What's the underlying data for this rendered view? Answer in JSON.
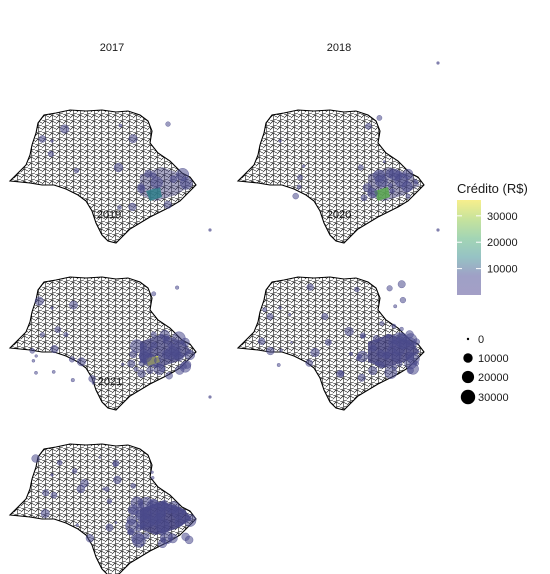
{
  "chart_data": {
    "type": "map",
    "panels": [
      {
        "year": "2017"
      },
      {
        "year": "2018"
      },
      {
        "year": "2019"
      },
      {
        "year": "2020"
      },
      {
        "year": "2021"
      }
    ],
    "fill_legend": {
      "title": "Crédito (R$)",
      "breaks": [
        {
          "label": "30000",
          "value": 30000,
          "color": "#f3ea8b"
        },
        {
          "label": "20000",
          "value": 20000,
          "color": "#b6df9e"
        },
        {
          "label": "10000",
          "value": 10000,
          "color": "#93c4c3"
        }
      ],
      "gradient_colors": [
        "#f7ef8c",
        "#c7e39c",
        "#a3d5b4",
        "#96c3c4",
        "#9fa0c6",
        "#a39fc6"
      ]
    },
    "size_legend": {
      "breaks": [
        {
          "label": "0",
          "value": 0
        },
        {
          "label": "10000",
          "value": 10000
        },
        {
          "label": "20000",
          "value": 20000
        },
        {
          "label": "30000",
          "value": 30000
        }
      ]
    },
    "colors": {
      "outline": "#000000",
      "bubble": "#4b4a8c",
      "low": "#3d3b7a",
      "mid": "#2f7e8a",
      "high": "#d6dc4a"
    }
  }
}
